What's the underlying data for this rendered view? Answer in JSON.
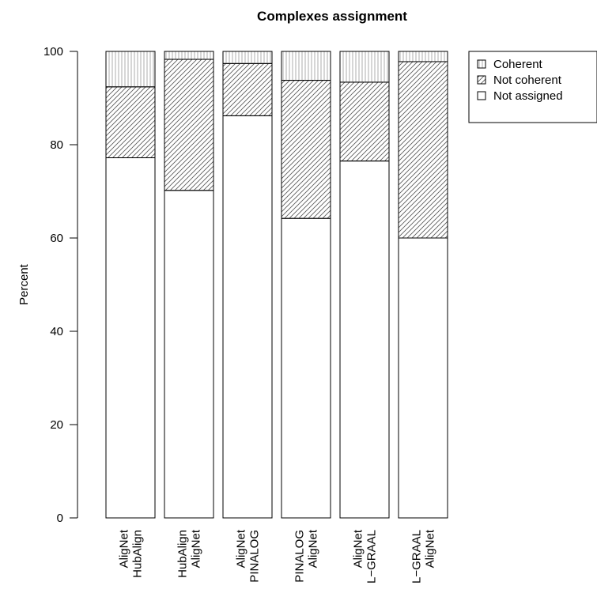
{
  "chart_data": {
    "type": "bar",
    "stacked": true,
    "title": "Complexes assignment",
    "xlabel": "",
    "ylabel": "Percent",
    "ylim": [
      0,
      100
    ],
    "yticks": [
      0,
      20,
      40,
      60,
      80,
      100
    ],
    "grid": false,
    "legend_position": "top-right",
    "categories": [
      [
        "AligNet",
        "HubAlign"
      ],
      [
        "HubAlign",
        "AligNet"
      ],
      [
        "AligNet",
        "PINALOG"
      ],
      [
        "PINALOG",
        "AligNet"
      ],
      [
        "AligNet",
        "L−GRAAL"
      ],
      [
        "L−GRAAL",
        "AligNet"
      ]
    ],
    "series": [
      {
        "name": "Not assigned",
        "pattern": "none",
        "values": [
          77.2,
          70.2,
          86.2,
          64.2,
          76.5,
          60.0
        ]
      },
      {
        "name": "Not coherent",
        "pattern": "diagonal",
        "values": [
          15.2,
          28.1,
          11.2,
          29.6,
          16.9,
          37.8
        ]
      },
      {
        "name": "Coherent",
        "pattern": "vertical",
        "values": [
          7.6,
          1.7,
          2.6,
          6.2,
          6.6,
          2.2
        ]
      }
    ],
    "legend": [
      "Coherent",
      "Not coherent",
      "Not assigned"
    ]
  }
}
